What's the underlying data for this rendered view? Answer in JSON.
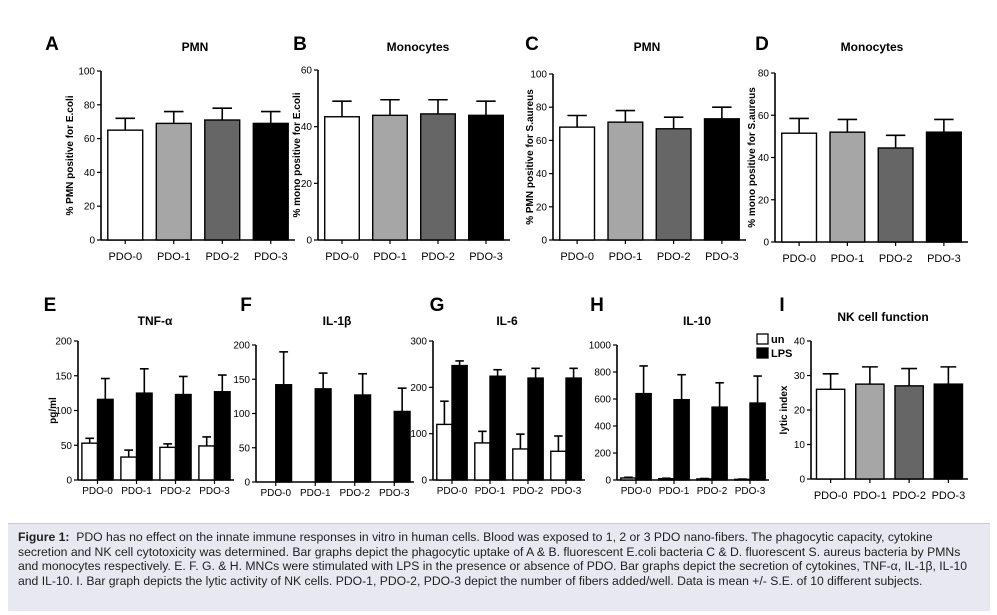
{
  "figure_label": "Figure 1:",
  "caption_text": "PDO has no effect on the innate immune responses in vitro in human cells. Blood was exposed to 1, 2 or 3 PDO nano-fibers. The phagocytic capacity, cytokine secretion and NK cell cytotoxicity was determined. Bar graphs depict the phagocytic uptake of A & B. fluorescent E.coli bacteria C & D. fluorescent S. aureus bacteria by PMNs and monocytes respectively. E. F. G. & H. MNCs were stimulated with LPS in the presence or absence of PDO. Bar graphs depict the secretion of cytokines, TNF-α, IL-1β, IL-10 and IL-10. I. Bar graph depicts the lytic activity of NK cells. PDO-1, PDO-2, PDO-3 depict the number of fibers added/well. Data is mean +/- S.E. of 10 different subjects.",
  "colors": {
    "white": "#ffffff",
    "lightgray": "#a6a6a6",
    "darkgray": "#666666",
    "black": "#000000"
  },
  "legend": {
    "un": "un",
    "lps": "LPS"
  },
  "chart_data": [
    {
      "panel": "A",
      "type": "bar",
      "title": "PMN",
      "ylabel": "% PMN positive for E.coli",
      "xlabel": "",
      "categories": [
        "PDO-0",
        "PDO-1",
        "PDO-2",
        "PDO-3"
      ],
      "values": [
        65,
        69,
        71,
        69
      ],
      "errors": [
        7,
        7,
        7,
        7
      ],
      "fills": [
        "white",
        "lightgray",
        "darkgray",
        "black"
      ],
      "ylim": [
        0,
        100
      ],
      "yticks": [
        0,
        20,
        40,
        60,
        80,
        100
      ]
    },
    {
      "panel": "B",
      "type": "bar",
      "title": "Monocytes",
      "ylabel": "% mono positive for E.coli",
      "xlabel": "",
      "categories": [
        "PDO-0",
        "PDO-1",
        "PDO-2",
        "PDO-3"
      ],
      "values": [
        43.5,
        44,
        44.5,
        44
      ],
      "errors": [
        5.5,
        5.5,
        5,
        5
      ],
      "fills": [
        "white",
        "lightgray",
        "darkgray",
        "black"
      ],
      "ylim": [
        0,
        60
      ],
      "yticks": [
        0,
        20,
        40,
        60
      ]
    },
    {
      "panel": "C",
      "type": "bar",
      "title": "PMN",
      "ylabel": "% PMN positive for S.aureus",
      "xlabel": "",
      "categories": [
        "PDO-0",
        "PDO-1",
        "PDO-2",
        "PDO-3"
      ],
      "values": [
        68,
        71,
        67,
        73
      ],
      "errors": [
        7,
        7,
        7,
        7
      ],
      "fills": [
        "white",
        "lightgray",
        "darkgray",
        "black"
      ],
      "ylim": [
        0,
        100
      ],
      "yticks": [
        0,
        20,
        40,
        60,
        80,
        100
      ]
    },
    {
      "panel": "D",
      "type": "bar",
      "title": "Monocytes",
      "ylabel": "% mono positive for S.aureus",
      "xlabel": "",
      "categories": [
        "PDO-0",
        "PDO-1",
        "PDO-2",
        "PDO-3"
      ],
      "values": [
        51.5,
        52,
        44.5,
        52
      ],
      "errors": [
        7,
        6,
        6,
        6
      ],
      "fills": [
        "white",
        "lightgray",
        "darkgray",
        "black"
      ],
      "ylim": [
        0,
        80
      ],
      "yticks": [
        0,
        20,
        40,
        60,
        80
      ]
    },
    {
      "panel": "E",
      "type": "bar",
      "title": "TNF-α",
      "ylabel": "pg/ml",
      "xlabel": "",
      "categories": [
        "PDO-0",
        "PDO-1",
        "PDO-2",
        "PDO-3"
      ],
      "series": [
        {
          "name": "un",
          "fill": "white",
          "values": [
            53,
            33,
            47,
            49
          ],
          "errors": [
            7,
            10,
            5,
            13
          ]
        },
        {
          "name": "LPS",
          "fill": "black",
          "values": [
            116,
            125,
            123,
            127
          ],
          "errors": [
            30,
            35,
            26,
            24
          ]
        }
      ],
      "ylim": [
        0,
        200
      ],
      "yticks": [
        0,
        50,
        100,
        150,
        200
      ]
    },
    {
      "panel": "F",
      "type": "bar",
      "title": "IL-1β",
      "ylabel": "",
      "xlabel": "",
      "categories": [
        "PDO-0",
        "PDO-1",
        "PDO-2",
        "PDO-3"
      ],
      "series": [
        {
          "name": "un",
          "fill": "white",
          "values": [
            0,
            0,
            0,
            0
          ],
          "errors": [
            0,
            0,
            0,
            0
          ]
        },
        {
          "name": "LPS",
          "fill": "black",
          "values": [
            142,
            136,
            127,
            103
          ],
          "errors": [
            48,
            23,
            31,
            34
          ]
        }
      ],
      "ylim": [
        0,
        200
      ],
      "yticks": [
        0,
        50,
        100,
        150,
        200
      ]
    },
    {
      "panel": "G",
      "type": "bar",
      "title": "IL-6",
      "ylabel": "",
      "xlabel": "",
      "categories": [
        "PDO-0",
        "PDO-1",
        "PDO-2",
        "PDO-3"
      ],
      "series": [
        {
          "name": "un",
          "fill": "white",
          "values": [
            120,
            80,
            67,
            62
          ],
          "errors": [
            50,
            25,
            32,
            33
          ]
        },
        {
          "name": "LPS",
          "fill": "black",
          "values": [
            247,
            224,
            220,
            220
          ],
          "errors": [
            10,
            14,
            21,
            21
          ]
        }
      ],
      "ylim": [
        0,
        300
      ],
      "yticks": [
        0,
        100,
        200,
        300
      ]
    },
    {
      "panel": "H",
      "type": "bar",
      "title": "IL-10",
      "ylabel": "",
      "xlabel": "",
      "categories": [
        "PDO-0",
        "PDO-1",
        "PDO-2",
        "PDO-3"
      ],
      "series": [
        {
          "name": "un",
          "fill": "white",
          "values": [
            15,
            10,
            8,
            5
          ],
          "errors": [
            5,
            3,
            3,
            2
          ]
        },
        {
          "name": "LPS",
          "fill": "black",
          "values": [
            640,
            595,
            540,
            570
          ],
          "errors": [
            205,
            185,
            180,
            200
          ]
        }
      ],
      "ylim": [
        0,
        1000
      ],
      "yticks": [
        0,
        200,
        400,
        600,
        800,
        1000
      ]
    },
    {
      "panel": "I",
      "type": "bar",
      "title": "NK cell function",
      "ylabel": "lytic index",
      "xlabel": "",
      "categories": [
        "PDO-0",
        "PDO-1",
        "PDO-2",
        "PDO-3"
      ],
      "values": [
        26,
        27.5,
        27,
        27.5
      ],
      "errors": [
        4.5,
        5,
        5,
        5
      ],
      "fills": [
        "white",
        "lightgray",
        "darkgray",
        "black"
      ],
      "ylim": [
        0,
        40
      ],
      "yticks": [
        0,
        10,
        20,
        30,
        40
      ]
    }
  ]
}
